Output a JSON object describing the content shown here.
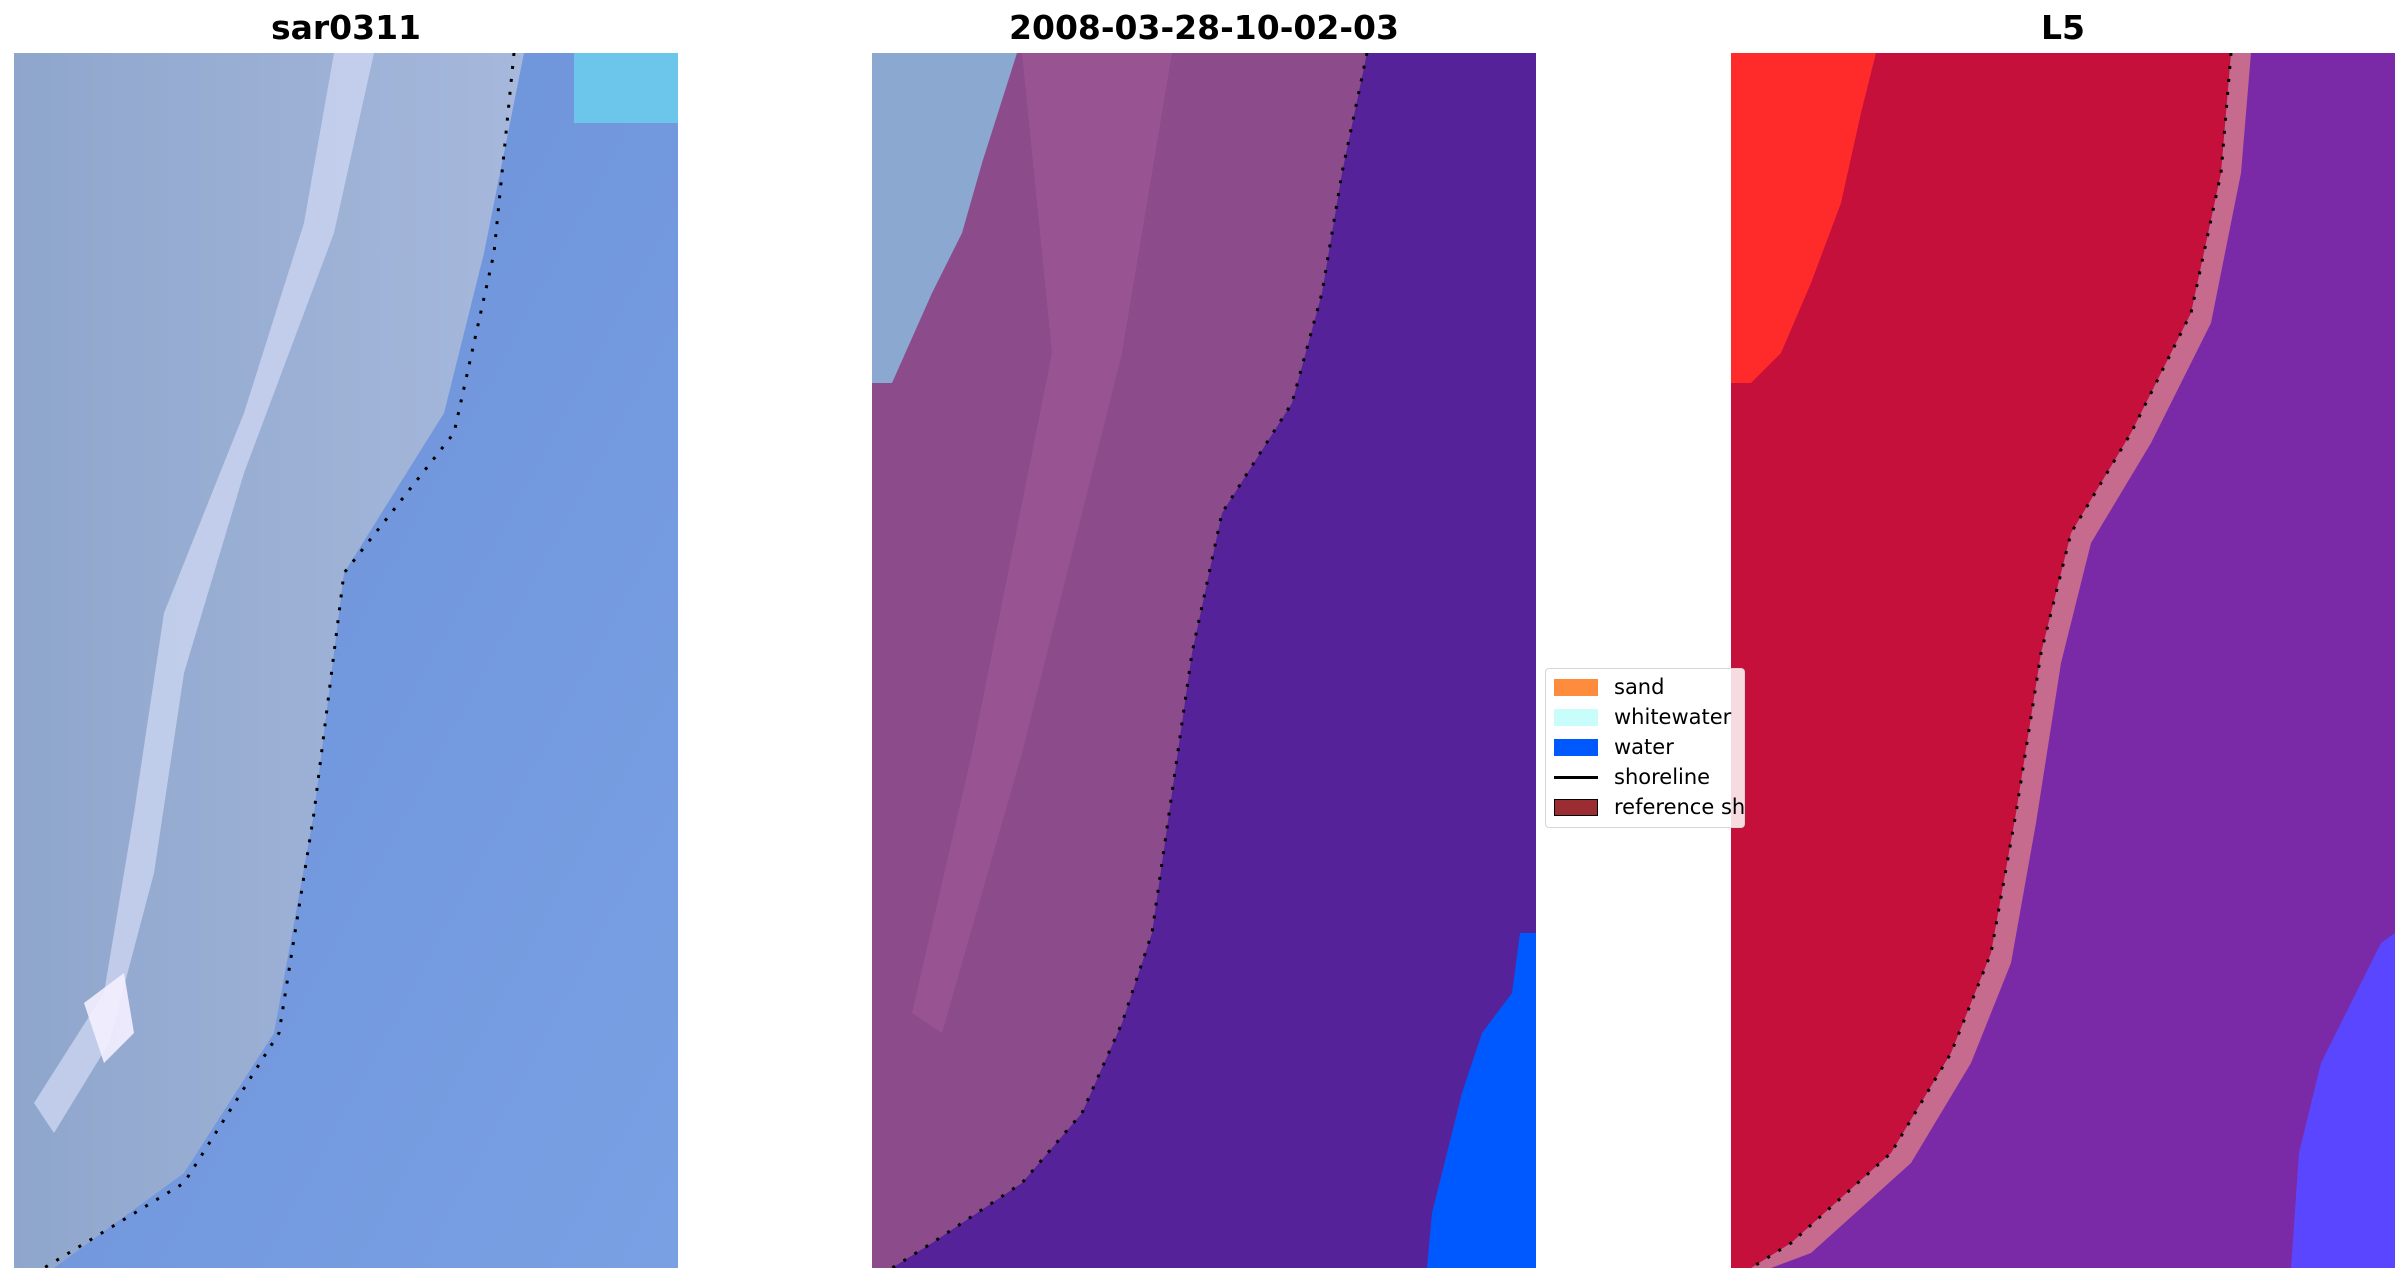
{
  "panels": [
    {
      "title": "sar0311"
    },
    {
      "title": "2008-03-28-10-02-03"
    },
    {
      "title": "L5"
    }
  ],
  "legend": {
    "items": [
      {
        "label": "sand",
        "color": "#ff8c3c",
        "kind": "patch"
      },
      {
        "label": "whitewater",
        "color": "#c8fdfc",
        "kind": "patch"
      },
      {
        "label": "water",
        "color": "#0058ff",
        "kind": "patch"
      },
      {
        "label": "shoreline",
        "color": "#000000",
        "kind": "line"
      },
      {
        "label": "reference shoreline",
        "color": "#9b2d32",
        "kind": "patch"
      }
    ]
  },
  "colors": {
    "sar_water": "#6f92d8",
    "sar_surf": "#c8d2ee",
    "classified_land": "#8c4c8c",
    "classified_water": "#56229a",
    "classified_sky": "#8aa8d0",
    "classified_bright_water": "#0058ff",
    "index_land": "#c4103a",
    "index_bright_land": "#ff2a2a",
    "index_water": "#7a2aa6",
    "index_bright_water": "#5a46ff"
  }
}
